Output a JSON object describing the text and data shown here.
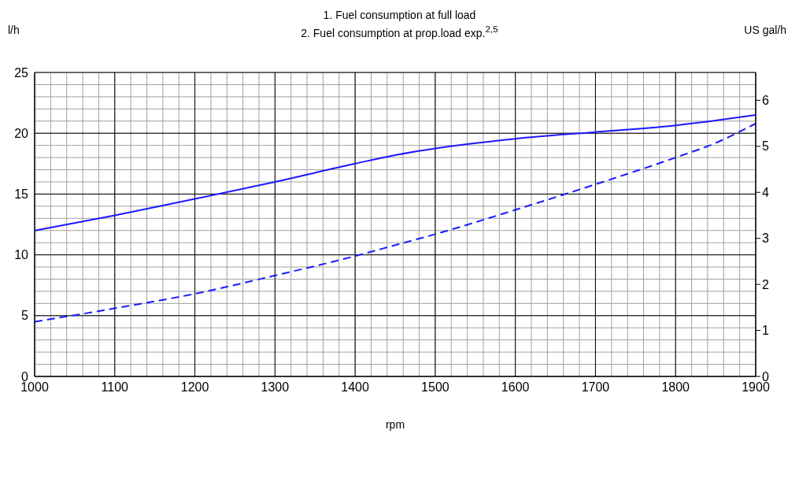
{
  "chart_data": {
    "type": "line",
    "title": "1. Fuel consumption at full load",
    "subtitle": "2. Fuel consumption at prop.load exp.$^{2,5}$",
    "xlabel": "rpm",
    "ylabel": "l/h",
    "y2label": "US gal/h",
    "x": [
      1000,
      1100,
      1200,
      1300,
      1400,
      1450,
      1500,
      1600,
      1700,
      1800,
      1850,
      1900
    ],
    "series": [
      {
        "color": "#1a1aff",
        "line_style": "solid",
        "values": [
          12.0,
          13.25,
          14.6,
          16.0,
          17.5,
          18.2,
          18.75,
          19.55,
          20.1,
          20.65,
          21.05,
          21.5
        ]
      },
      {
        "color": "#1a1aff",
        "line_style": "dashed",
        "values": [
          4.5,
          5.6,
          6.8,
          8.3,
          9.9,
          10.8,
          11.7,
          13.7,
          15.8,
          18.0,
          19.2,
          20.8
        ]
      }
    ],
    "xlim": [
      1000,
      1900
    ],
    "xticks": [
      1000,
      {
        "value": 1020,
        "label": null
      },
      {
        "value": 1040,
        "label": null
      },
      {
        "value": 1060,
        "label": null
      },
      {
        "value": 1080,
        "label": null
      },
      1100,
      {
        "value": 1120,
        "label": null
      },
      {
        "value": 1140,
        "label": null
      },
      {
        "value": 1160,
        "label": null
      },
      {
        "value": 1180,
        "label": null
      },
      1200,
      {
        "value": 1220,
        "label": null
      },
      {
        "value": 1240,
        "label": null
      },
      {
        "value": 1260,
        "label": null
      },
      {
        "value": 1280,
        "label": null
      },
      1300,
      {
        "value": 1320,
        "label": null
      },
      {
        "value": 1340,
        "label": null
      },
      {
        "value": 1360,
        "label": null
      },
      {
        "value": 1380,
        "label": null
      },
      1400,
      {
        "value": 1420,
        "label": null
      },
      {
        "value": 1440,
        "label": null
      },
      {
        "value": 1460,
        "label": null
      },
      {
        "value": 1480,
        "label": null
      },
      1500,
      {
        "value": 1520,
        "label": null
      },
      {
        "value": 1540,
        "label": null
      },
      {
        "value": 1560,
        "label": null
      },
      {
        "value": 1580,
        "label": null
      },
      1600,
      {
        "value": 1620,
        "label": null
      },
      {
        "value": 1640,
        "label": null
      },
      {
        "value": 1660,
        "label": null
      },
      {
        "value": 1680,
        "label": null
      },
      1700,
      {
        "value": 1720,
        "label": null
      },
      {
        "value": 1740,
        "label": null
      },
      {
        "value": 1760,
        "label": null
      },
      {
        "value": 1780,
        "label": null
      },
      1800,
      {
        "value": 1820,
        "label": null
      },
      {
        "value": 1840,
        "label": null
      },
      {
        "value": 1860,
        "label": null
      },
      {
        "value": 1880,
        "label": null
      },
      1900
    ],
    "ylim": [
      0,
      25
    ],
    "yticks": [
      0,
      {
        "value": 1,
        "label": null
      },
      {
        "value": 2,
        "label": null
      },
      {
        "value": 3,
        "label": null
      },
      {
        "value": 4,
        "label": null
      },
      5,
      {
        "value": 6,
        "label": null
      },
      {
        "value": 7,
        "label": null
      },
      {
        "value": 8,
        "label": null
      },
      {
        "value": 9,
        "label": null
      },
      10,
      {
        "value": 11,
        "label": null
      },
      {
        "value": 12,
        "label": null
      },
      {
        "value": 13,
        "label": null
      },
      {
        "value": 14,
        "label": null
      },
      15,
      {
        "value": 16,
        "label": null
      },
      {
        "value": 17,
        "label": null
      },
      {
        "value": 18,
        "label": null
      },
      {
        "value": 19,
        "label": null
      },
      20,
      {
        "value": 21,
        "label": null
      },
      {
        "value": 22,
        "label": null
      },
      {
        "value": 23,
        "label": null
      },
      {
        "value": 24,
        "label": null
      },
      25
    ],
    "y2lim": [
      0,
      6.605
    ],
    "y2ticks": [
      0,
      1,
      2,
      3,
      4,
      5,
      6
    ],
    "grid": true,
    "marker": "none",
    "legend": false
  }
}
